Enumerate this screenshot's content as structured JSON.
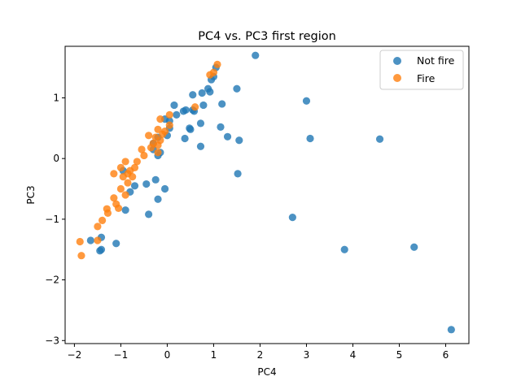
{
  "chart_data": {
    "type": "scatter",
    "title": "PC4 vs. PC3 first region",
    "xlabel": "PC4",
    "ylabel": "PC3",
    "xlim": [
      -2.2,
      6.5
    ],
    "ylim": [
      -3.05,
      1.85
    ],
    "xticks": [
      -2,
      -1,
      0,
      1,
      2,
      3,
      4,
      5,
      6
    ],
    "yticks": [
      -3,
      -2,
      -1,
      0,
      1
    ],
    "grid": false,
    "legend_position": "top-right",
    "series": [
      {
        "name": "Not fire",
        "color": "#1f77b4",
        "points": [
          [
            1.9,
            1.7
          ],
          [
            1.05,
            1.5
          ],
          [
            1.0,
            1.35
          ],
          [
            0.95,
            1.3
          ],
          [
            0.88,
            1.15
          ],
          [
            0.92,
            1.1
          ],
          [
            0.75,
            1.08
          ],
          [
            0.55,
            1.05
          ],
          [
            1.5,
            1.15
          ],
          [
            0.78,
            0.88
          ],
          [
            1.18,
            0.9
          ],
          [
            0.55,
            0.8
          ],
          [
            0.4,
            0.8
          ],
          [
            0.35,
            0.78
          ],
          [
            0.58,
            0.78
          ],
          [
            0.2,
            0.72
          ],
          [
            0.15,
            0.88
          ],
          [
            0.05,
            0.62
          ],
          [
            0.05,
            0.5
          ],
          [
            0.0,
            0.38
          ],
          [
            0.72,
            0.58
          ],
          [
            1.15,
            0.52
          ],
          [
            0.5,
            0.48
          ],
          [
            0.48,
            0.5
          ],
          [
            0.38,
            0.33
          ],
          [
            1.3,
            0.36
          ],
          [
            1.55,
            0.3
          ],
          [
            0.72,
            0.2
          ],
          [
            3.0,
            0.95
          ],
          [
            3.08,
            0.33
          ],
          [
            4.58,
            0.32
          ],
          [
            -0.05,
            0.65
          ],
          [
            -0.2,
            0.35
          ],
          [
            -0.15,
            0.1
          ],
          [
            -0.2,
            0.05
          ],
          [
            -0.3,
            0.15
          ],
          [
            -0.3,
            0.25
          ],
          [
            1.52,
            -0.25
          ],
          [
            -0.25,
            -0.35
          ],
          [
            -0.45,
            -0.42
          ],
          [
            -0.05,
            -0.5
          ],
          [
            -0.2,
            -0.67
          ],
          [
            -0.7,
            -0.45
          ],
          [
            -0.8,
            -0.55
          ],
          [
            -0.9,
            -0.85
          ],
          [
            -0.4,
            -0.92
          ],
          [
            -0.95,
            -0.2
          ],
          [
            -1.1,
            -1.4
          ],
          [
            -1.42,
            -1.3
          ],
          [
            -1.65,
            -1.35
          ],
          [
            -1.45,
            -1.52
          ],
          [
            -1.42,
            -1.5
          ],
          [
            2.7,
            -0.97
          ],
          [
            3.82,
            -1.5
          ],
          [
            5.32,
            -1.46
          ],
          [
            6.12,
            -2.82
          ]
        ]
      },
      {
        "name": "Fire",
        "color": "#ff7f0e",
        "points": [
          [
            1.08,
            1.55
          ],
          [
            1.0,
            1.42
          ],
          [
            0.92,
            1.38
          ],
          [
            0.6,
            0.85
          ],
          [
            0.05,
            0.72
          ],
          [
            -0.15,
            0.65
          ],
          [
            0.05,
            0.55
          ],
          [
            -0.2,
            0.48
          ],
          [
            -0.05,
            0.45
          ],
          [
            -0.1,
            0.4
          ],
          [
            -0.4,
            0.38
          ],
          [
            -0.25,
            0.35
          ],
          [
            -0.15,
            0.3
          ],
          [
            -0.3,
            0.25
          ],
          [
            -0.2,
            0.22
          ],
          [
            -0.35,
            0.18
          ],
          [
            -0.2,
            0.1
          ],
          [
            -0.5,
            0.05
          ],
          [
            -0.55,
            0.15
          ],
          [
            -0.65,
            -0.05
          ],
          [
            -0.9,
            -0.05
          ],
          [
            -0.7,
            -0.15
          ],
          [
            -0.8,
            -0.2
          ],
          [
            -0.85,
            -0.25
          ],
          [
            -0.75,
            -0.3
          ],
          [
            -0.95,
            -0.3
          ],
          [
            -1.0,
            -0.15
          ],
          [
            -1.15,
            -0.25
          ],
          [
            -0.85,
            -0.4
          ],
          [
            -1.0,
            -0.5
          ],
          [
            -0.9,
            -0.6
          ],
          [
            -1.15,
            -0.65
          ],
          [
            -1.1,
            -0.75
          ],
          [
            -1.05,
            -0.82
          ],
          [
            -1.3,
            -0.83
          ],
          [
            -1.28,
            -0.9
          ],
          [
            -1.4,
            -1.02
          ],
          [
            -1.5,
            -1.12
          ],
          [
            -1.5,
            -1.35
          ],
          [
            -1.88,
            -1.37
          ],
          [
            -1.85,
            -1.6
          ]
        ]
      }
    ]
  }
}
